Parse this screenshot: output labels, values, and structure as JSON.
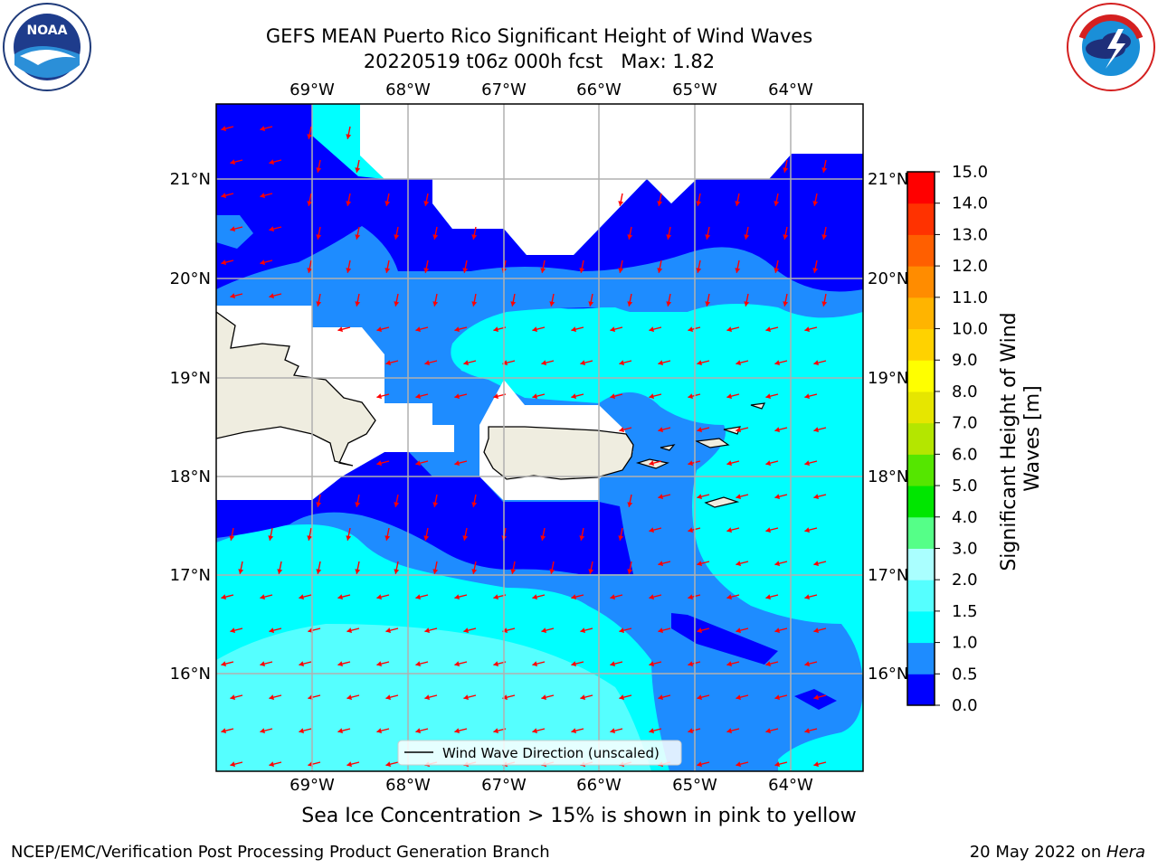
{
  "title": {
    "line1": "GEFS MEAN Puerto Rico Significant Height of Wind Waves",
    "line2": "20220519 t06z 000h fcst   Max: 1.82"
  },
  "axes": {
    "lon_labels": [
      "69°W",
      "68°W",
      "67°W",
      "66°W",
      "65°W",
      "64°W"
    ],
    "lat_labels": [
      "21°N",
      "20°N",
      "19°N",
      "18°N",
      "17°N",
      "16°N"
    ],
    "lon_range": [
      -70.0,
      -63.25
    ],
    "lat_range": [
      15.0,
      21.75
    ],
    "grid": true
  },
  "legend": {
    "label": "Wind Wave Direction (unscaled)",
    "placement": "bottom-center"
  },
  "colorbar": {
    "label_line1": "Significant Height of Wind",
    "label_line2": "Waves [m]",
    "ticks": [
      "0.0",
      "0.5",
      "1.0",
      "1.5",
      "2.0",
      "3.0",
      "4.0",
      "5.0",
      "6.0",
      "7.0",
      "8.0",
      "9.0",
      "10.0",
      "11.0",
      "12.0",
      "13.0",
      "14.0",
      "15.0"
    ],
    "colors": [
      "#0000ff",
      "#1e8cff",
      "#00ffff",
      "#55ffff",
      "#aaffff",
      "#55ff88",
      "#00e600",
      "#55e600",
      "#b4e600",
      "#e6e600",
      "#ffff00",
      "#ffd200",
      "#ffb400",
      "#ff8c00",
      "#ff5f00",
      "#ff3200",
      "#ff0000"
    ]
  },
  "map": {
    "land_color": "#efede0",
    "arrow_color": "#ff0000",
    "max_value": 1.82,
    "icons": [
      "noaa-logo-icon",
      "nws-logo-icon"
    ],
    "logo_text": {
      "noaa": "NOAA",
      "noaa_ring": "NATIONAL OCEANIC AND ATMOSPHERIC ADMINISTRATION · U.S. DEPARTMENT OF COMMERCE",
      "nws_ring": "NATIONAL WEATHER SERVICE"
    }
  },
  "caption": "Sea Ice Concentration > 15% is shown in pink to yellow",
  "footer": {
    "left": "NCEP/EMC/Verification Post Processing Product Generation Branch",
    "right_date": "20 May 2022 on ",
    "right_machine": "Hera"
  }
}
